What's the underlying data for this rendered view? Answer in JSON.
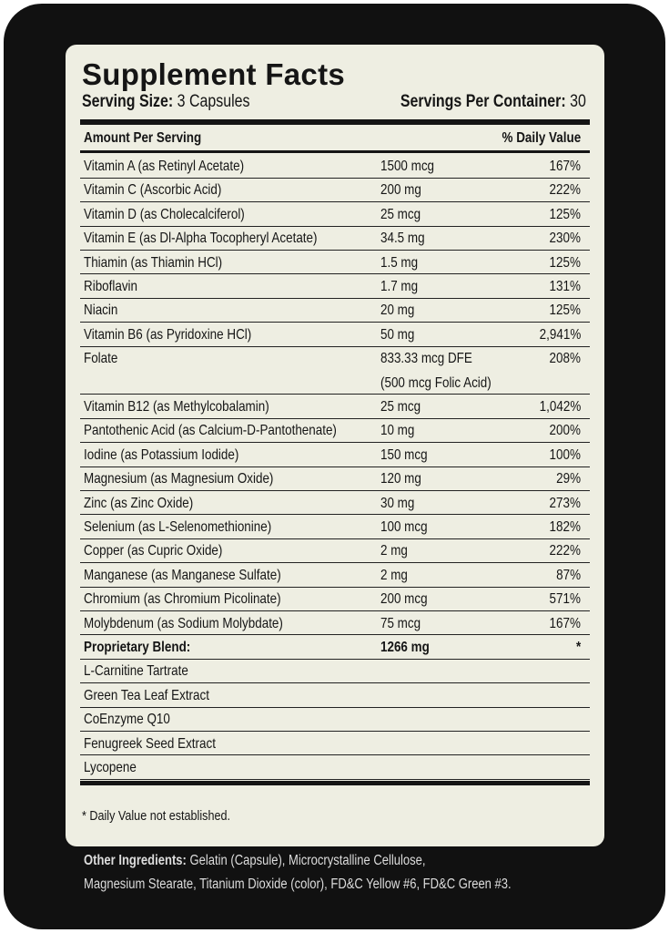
{
  "panel": {
    "title": "Supplement Facts",
    "serving_size_label": "Serving Size:",
    "serving_size": "3 Capsules",
    "servings_label": "Servings Per Container:",
    "servings": "30"
  },
  "table": {
    "header": [
      "Amount Per Serving",
      "% Daily Value"
    ],
    "rows": [
      {
        "name": "Vitamin A (as Retinyl Acetate)",
        "amount": "1500 mcg",
        "dv": "167%"
      },
      {
        "name": "Vitamin C (Ascorbic Acid)",
        "amount": "200 mg",
        "dv": "222%"
      },
      {
        "name": "Vitamin D (as Cholecalciferol)",
        "amount": "25 mcg",
        "dv": "125%"
      },
      {
        "name": "Vitamin E (as Dl-Alpha Tocopheryl Acetate)",
        "amount": "34.5 mg",
        "dv": "230%"
      },
      {
        "name": "Thiamin (as Thiamin HCl)",
        "amount": "1.5 mg",
        "dv": "125%"
      },
      {
        "name": "Riboflavin",
        "amount": "1.7 mg",
        "dv": "131%"
      },
      {
        "name": "Niacin",
        "amount": "20 mg",
        "dv": "125%"
      },
      {
        "name": "Vitamin B6 (as Pyridoxine HCl)",
        "amount": "50 mg",
        "dv": "2,941%"
      },
      {
        "name": "Folate",
        "amount": "833.33 mcg DFE",
        "amount_note": "(500 mcg Folic Acid)",
        "dv": "208%"
      },
      {
        "name": "Vitamin B12 (as Methylcobalamin)",
        "amount": "25 mcg",
        "dv": "1,042%"
      },
      {
        "name": "Pantothenic Acid (as Calcium-D-Pantothenate)",
        "amount": "10 mg",
        "dv": "200%"
      },
      {
        "name": "Iodine (as Potassium Iodide)",
        "amount": "150 mcg",
        "dv": "100%"
      },
      {
        "name": "Magnesium (as Magnesium Oxide)",
        "amount": "120 mg",
        "dv": "29%"
      },
      {
        "name": "Zinc (as Zinc Oxide)",
        "amount": "30 mg",
        "dv": "273%"
      },
      {
        "name": "Selenium (as L-Selenomethionine)",
        "amount": "100 mcg",
        "dv": "182%"
      },
      {
        "name": "Copper (as Cupric Oxide)",
        "amount": "2 mg",
        "dv": "222%"
      },
      {
        "name": "Manganese (as Manganese Sulfate)",
        "amount": "2 mg",
        "dv": "87%"
      },
      {
        "name": "Chromium (as Chromium Picolinate)",
        "amount": "200 mcg",
        "dv": "571%"
      },
      {
        "name": "Molybdenum (as Sodium Molybdate)",
        "amount": "75 mcg",
        "dv": "167%"
      },
      {
        "name": "Proprietary Blend:",
        "amount": "1266 mg",
        "dv": "*",
        "bold": true
      },
      {
        "name": "L-Carnitine Tartrate"
      },
      {
        "name": "Green Tea Leaf Extract"
      },
      {
        "name": "CoEnzyme Q10"
      },
      {
        "name": "Fenugreek Seed Extract"
      },
      {
        "name": "Lycopene"
      }
    ]
  },
  "footnote": "* Daily Value not established.",
  "other_ingredients": {
    "label": "Other Ingredients:",
    "line1": "Gelatin (Capsule), Microcrystalline Cellulose,",
    "line2": "Magnesium Stearate, Titanium Dioxide (color), FD&C Yellow #6, FD&C Green #3."
  }
}
